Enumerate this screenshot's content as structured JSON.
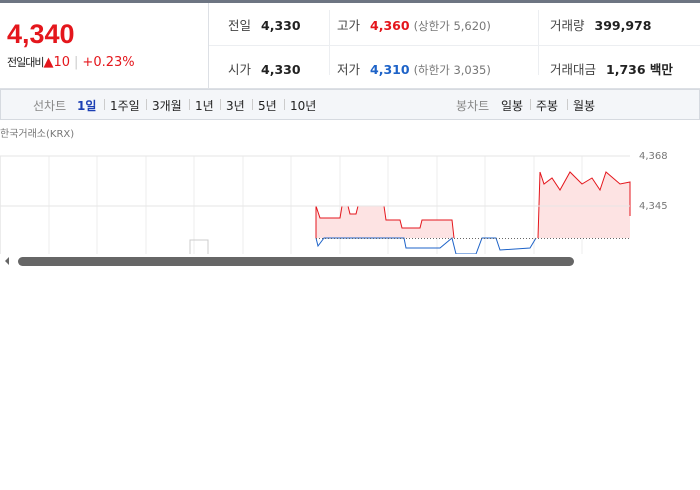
{
  "quote": {
    "price": "4,340",
    "change_label": "전일대비",
    "change": "10",
    "change_rate": "+0.23%"
  },
  "stats": [
    {
      "label": "전일",
      "value": "4,330"
    },
    {
      "label": "고가",
      "value": "4,360",
      "note": "(상한가 5,620)"
    },
    {
      "label": "거래량",
      "value": "399,978"
    },
    {
      "label": "시가",
      "value": "4,330"
    },
    {
      "label": "저가",
      "value": "4,310",
      "note": "(하한가 3,035)"
    },
    {
      "label": "거래대금",
      "value": "1,736 백만"
    }
  ],
  "tabs": {
    "line_label": "선차트",
    "line": [
      "1일",
      "1주일",
      "3개월",
      "1년",
      "3년",
      "5년",
      "10년"
    ],
    "active": "1일",
    "candle_label": "봉차트",
    "candle": [
      "일봉",
      "주봉",
      "월봉"
    ]
  },
  "chart": {
    "source": "한국거래소(KRX)",
    "yticks": [
      {
        "value": 4368,
        "label": "4,368"
      },
      {
        "value": 4345,
        "label": "4,345"
      }
    ]
  }
}
